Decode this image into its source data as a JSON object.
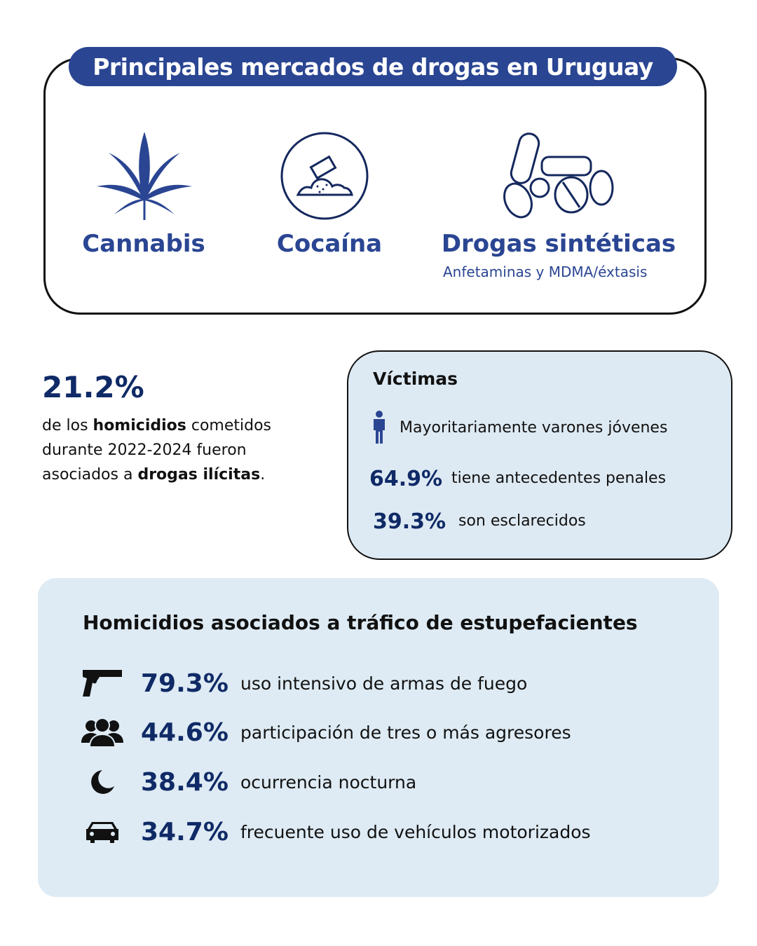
{
  "colors": {
    "brand": "#2a4592",
    "navy": "#0f2a66",
    "panel": "#deebf4"
  },
  "markets": {
    "title": "Principales mercados de drogas en Uruguay",
    "items": [
      {
        "label": "Cannabis",
        "icon": "cannabis-leaf-icon"
      },
      {
        "label": "Cocaína",
        "icon": "cocaine-powder-icon"
      },
      {
        "label": "Drogas sintéticas",
        "sublabel": "Anfetaminas y MDMA/éxtasis",
        "icon": "pills-icon"
      }
    ]
  },
  "homicides_stat": {
    "value": "21.2%",
    "pre": "de los ",
    "bold1": "homicidios",
    "mid": " cometidos durante 2022-2024 fueron asociados a ",
    "bold2": "drogas ilícitas",
    "post": "."
  },
  "victims": {
    "title": "Víctimas",
    "profile": "Mayoritariamente varones jóvenes",
    "stats": [
      {
        "value": "64.9%",
        "text": "tiene antecedentes penales"
      },
      {
        "value": "39.3%",
        "text": "son esclarecidos"
      }
    ]
  },
  "trafficking": {
    "title": "Homicidios asociados a tráfico de estupefacientes",
    "rows": [
      {
        "value": "79.3%",
        "text": "uso intensivo de armas de fuego",
        "icon": "gun-icon"
      },
      {
        "value": "44.6%",
        "text": "participación de tres o más agresores",
        "icon": "group-icon"
      },
      {
        "value": "38.4%",
        "text": "ocurrencia nocturna",
        "icon": "moon-icon"
      },
      {
        "value": "34.7%",
        "text": "frecuente uso de vehículos motorizados",
        "icon": "car-icon"
      }
    ]
  }
}
